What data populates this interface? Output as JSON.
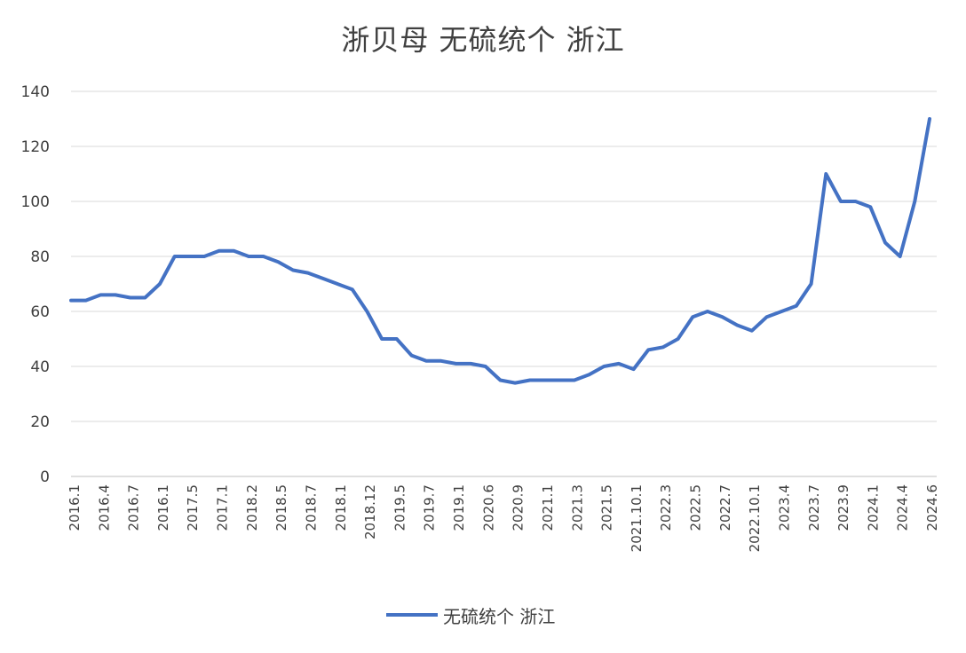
{
  "title": "浙贝母 无硫统个 浙江",
  "legend": {
    "label": "无硫统个 浙江"
  },
  "colors": {
    "line": "#4472C4",
    "grid": "#D9D9D9",
    "axis": "#BFBFBF",
    "text": "#404040"
  },
  "chart_data": {
    "type": "line",
    "title": "浙贝母 无硫统个 浙江",
    "ylim": [
      0,
      140
    ],
    "yticks": [
      0,
      20,
      40,
      60,
      80,
      100,
      120,
      140
    ],
    "grid": true,
    "legend_position": "bottom",
    "xticklabels": [
      "2016.1",
      "2016.4",
      "2016.7",
      "2016.1",
      "2017.5",
      "2017.1",
      "2018.2",
      "2018.5",
      "2018.7",
      "2018.1",
      "2018.12",
      "2019.5",
      "2019.7",
      "2019.1",
      "2020.6",
      "2020.9",
      "2021.1",
      "2021.3",
      "2021.5",
      "2021.10.1",
      "2022.3",
      "2022.5",
      "2022.7",
      "2022.10.1",
      "2023.4",
      "2023.7",
      "2023.9",
      "2024.1",
      "2024.4",
      "2024.6"
    ],
    "series": [
      {
        "name": "无硫统个 浙江",
        "values": [
          64,
          64,
          66,
          66,
          65,
          65,
          70,
          80,
          80,
          80,
          82,
          82,
          80,
          80,
          78,
          75,
          74,
          72,
          70,
          68,
          60,
          50,
          50,
          44,
          42,
          42,
          41,
          41,
          40,
          35,
          34,
          35,
          35,
          35,
          35,
          37,
          40,
          41,
          39,
          46,
          47,
          50,
          58,
          60,
          58,
          55,
          53,
          58,
          60,
          62,
          70,
          110,
          100,
          100,
          98,
          85,
          80,
          100,
          130
        ]
      }
    ]
  }
}
